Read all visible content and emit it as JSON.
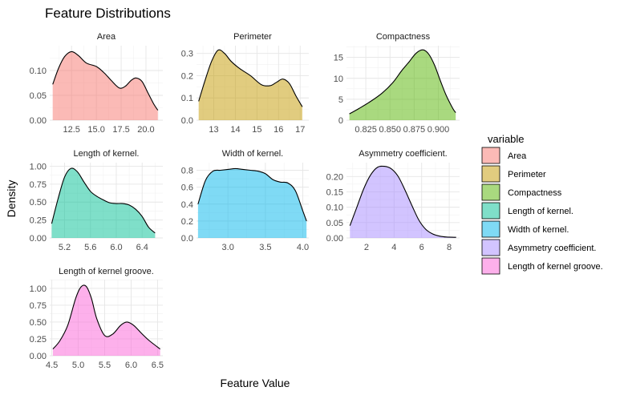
{
  "chart_data": {
    "type": "area",
    "title": "Feature Distributions",
    "xlabel": "Feature Value",
    "ylabel": "Density",
    "legend": {
      "title": "variable",
      "position": "right",
      "items": [
        "Area",
        "Perimeter",
        "Compactness",
        "Length of kernel.",
        "Width of kernel.",
        "Asymmetry coefficient.",
        "Length of kernel groove."
      ]
    },
    "panels": [
      {
        "name": "Area",
        "color": "#F8766D",
        "xlim": [
          10.3,
          21.7
        ],
        "ylim": [
          0,
          0.15
        ],
        "xticks": [
          12.5,
          15.0,
          17.5,
          20.0
        ],
        "xtick_labels": [
          "12.5",
          "15.0",
          "17.5",
          "20.0"
        ],
        "yticks": [
          0,
          0.05,
          0.1
        ],
        "ytick_labels": [
          "0.00",
          "0.05",
          "0.10"
        ],
        "x": [
          10.6,
          11.2,
          11.8,
          12.5,
          13.2,
          14.0,
          15.0,
          15.8,
          16.5,
          17.3,
          17.9,
          18.5,
          19.0,
          19.6,
          20.2,
          20.8,
          21.2
        ],
        "y": [
          0.072,
          0.105,
          0.128,
          0.138,
          0.13,
          0.115,
          0.108,
          0.095,
          0.08,
          0.065,
          0.068,
          0.08,
          0.085,
          0.078,
          0.055,
          0.032,
          0.02
        ]
      },
      {
        "name": "Perimeter",
        "color": "#C49A00",
        "xlim": [
          12.2,
          17.4
        ],
        "ylim": [
          0,
          0.335
        ],
        "xticks": [
          13,
          14,
          15,
          16,
          17
        ],
        "xtick_labels": [
          "13",
          "14",
          "15",
          "16",
          "17"
        ],
        "yticks": [
          0,
          0.1,
          0.2,
          0.3
        ],
        "ytick_labels": [
          "0.0",
          "0.1",
          "0.2",
          "0.3"
        ],
        "x": [
          12.3,
          12.6,
          12.9,
          13.2,
          13.5,
          13.8,
          14.2,
          14.7,
          15.2,
          15.6,
          15.9,
          16.2,
          16.5,
          16.8,
          17.1
        ],
        "y": [
          0.085,
          0.18,
          0.265,
          0.315,
          0.3,
          0.265,
          0.232,
          0.2,
          0.16,
          0.155,
          0.17,
          0.185,
          0.165,
          0.11,
          0.06
        ]
      },
      {
        "name": "Compactness",
        "color": "#53B400",
        "xlim": [
          0.805,
          0.922
        ],
        "ylim": [
          0,
          17.8
        ],
        "xticks": [
          0.825,
          0.85,
          0.875,
          0.9
        ],
        "xtick_labels": [
          "0.825",
          "0.850",
          "0.875",
          "0.900"
        ],
        "yticks": [
          0,
          5,
          10,
          15
        ],
        "ytick_labels": [
          "0",
          "5",
          "10",
          "15"
        ],
        "x": [
          0.808,
          0.818,
          0.83,
          0.842,
          0.853,
          0.862,
          0.87,
          0.877,
          0.884,
          0.89,
          0.896,
          0.902,
          0.908,
          0.915,
          0.918
        ],
        "y": [
          1.5,
          2.8,
          4.5,
          6.5,
          9.0,
          11.8,
          14.0,
          16.0,
          16.8,
          15.8,
          13.2,
          9.5,
          6.0,
          2.8,
          1.8
        ]
      },
      {
        "name": "Length of kernel.",
        "color": "#00C094",
        "xlim": [
          4.97,
          6.72
        ],
        "ylim": [
          0,
          1.05
        ],
        "xticks": [
          5.2,
          5.6,
          6.0,
          6.4
        ],
        "xtick_labels": [
          "5.2",
          "5.6",
          "6.0",
          "6.4"
        ],
        "yticks": [
          0,
          0.25,
          0.5,
          0.75,
          1.0
        ],
        "ytick_labels": [
          "0.00",
          "0.25",
          "0.50",
          "0.75",
          "1.00"
        ],
        "x": [
          5.0,
          5.1,
          5.2,
          5.3,
          5.4,
          5.5,
          5.6,
          5.7,
          5.8,
          5.9,
          6.0,
          6.1,
          6.2,
          6.3,
          6.4,
          6.5,
          6.6
        ],
        "y": [
          0.2,
          0.55,
          0.85,
          0.97,
          0.92,
          0.78,
          0.65,
          0.58,
          0.53,
          0.49,
          0.48,
          0.48,
          0.46,
          0.4,
          0.3,
          0.15,
          0.07
        ]
      },
      {
        "name": "Width of kernel.",
        "color": "#00B6EB",
        "xlim": [
          2.58,
          4.08
        ],
        "ylim": [
          0,
          0.89
        ],
        "xticks": [
          3.0,
          3.5,
          4.0
        ],
        "xtick_labels": [
          "3.0",
          "3.5",
          "4.0"
        ],
        "yticks": [
          0,
          0.2,
          0.4,
          0.6,
          0.8
        ],
        "ytick_labels": [
          "0.0",
          "0.2",
          "0.4",
          "0.6",
          "0.8"
        ],
        "x": [
          2.6,
          2.7,
          2.8,
          2.9,
          3.0,
          3.1,
          3.2,
          3.3,
          3.4,
          3.5,
          3.6,
          3.7,
          3.8,
          3.9,
          4.0,
          4.05
        ],
        "y": [
          0.4,
          0.68,
          0.79,
          0.8,
          0.81,
          0.82,
          0.81,
          0.8,
          0.79,
          0.76,
          0.69,
          0.66,
          0.65,
          0.56,
          0.32,
          0.2
        ]
      },
      {
        "name": "Asymmetry coefficient.",
        "color": "#A58AFF",
        "xlim": [
          0.55,
          8.75
        ],
        "ylim": [
          0,
          0.245
        ],
        "xticks": [
          2,
          4,
          6,
          8
        ],
        "xtick_labels": [
          "2",
          "4",
          "6",
          "8"
        ],
        "yticks": [
          0,
          0.05,
          0.1,
          0.15,
          0.2
        ],
        "ytick_labels": [
          "0.00",
          "0.05",
          "0.10",
          "0.15",
          "0.20"
        ],
        "x": [
          0.8,
          1.3,
          1.8,
          2.3,
          2.8,
          3.3,
          3.8,
          4.3,
          4.8,
          5.3,
          5.8,
          6.3,
          6.8,
          7.3,
          7.8,
          8.5
        ],
        "y": [
          0.04,
          0.1,
          0.16,
          0.205,
          0.23,
          0.233,
          0.225,
          0.2,
          0.155,
          0.105,
          0.058,
          0.028,
          0.013,
          0.006,
          0.003,
          0.002
        ]
      },
      {
        "name": "Length of kernel groove.",
        "color": "#FB61D7",
        "xlim": [
          4.46,
          6.6
        ],
        "ylim": [
          0,
          1.13
        ],
        "xticks": [
          4.5,
          5.0,
          5.5,
          6.0,
          6.5
        ],
        "xtick_labels": [
          "4.5",
          "5.0",
          "5.5",
          "6.0",
          "6.5"
        ],
        "yticks": [
          0,
          0.25,
          0.5,
          0.75,
          1.0
        ],
        "ytick_labels": [
          "0.00",
          "0.25",
          "0.50",
          "0.75",
          "1.00"
        ],
        "x": [
          4.52,
          4.65,
          4.8,
          4.95,
          5.05,
          5.15,
          5.25,
          5.35,
          5.5,
          5.65,
          5.8,
          5.92,
          6.05,
          6.2,
          6.35,
          6.55
        ],
        "y": [
          0.1,
          0.22,
          0.45,
          0.85,
          1.02,
          1.03,
          0.85,
          0.55,
          0.3,
          0.32,
          0.45,
          0.5,
          0.45,
          0.33,
          0.22,
          0.1
        ]
      }
    ]
  }
}
